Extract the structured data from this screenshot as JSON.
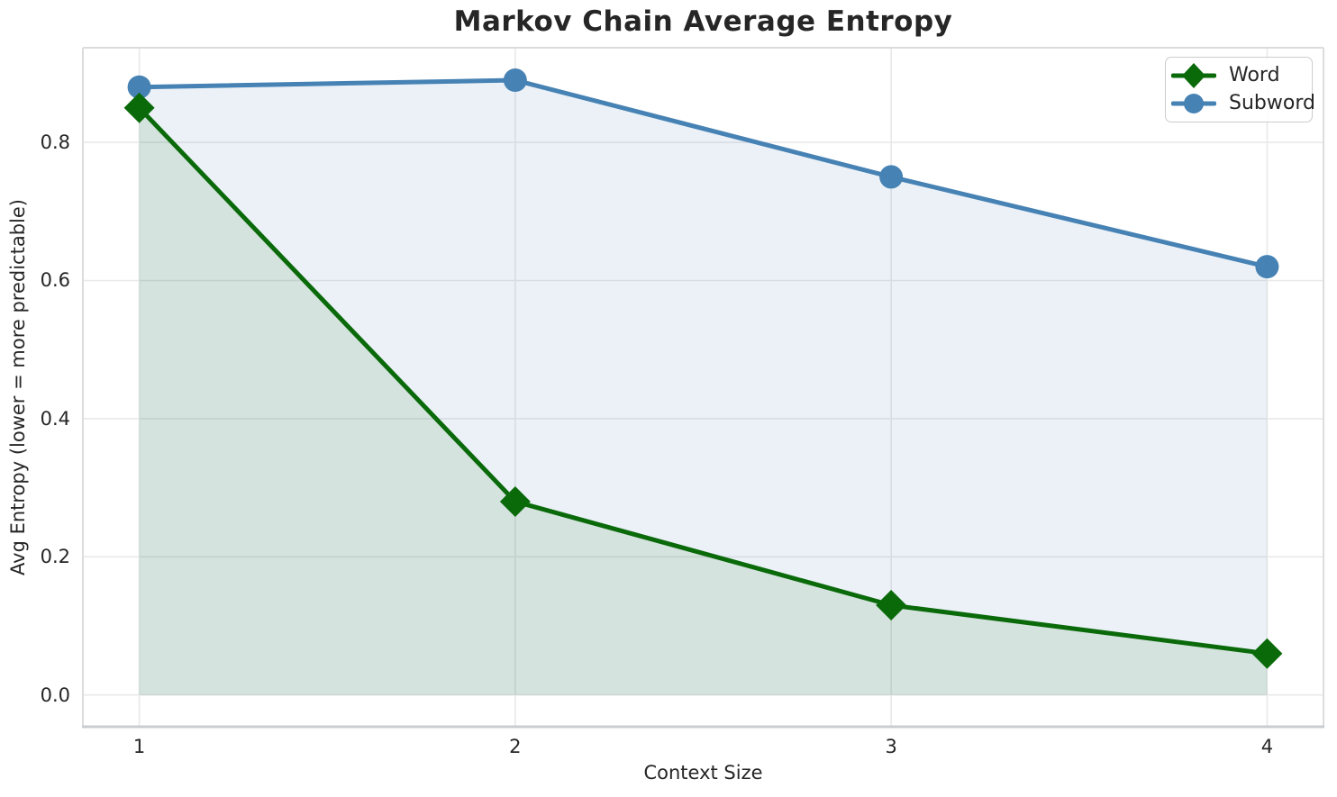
{
  "chart_data": {
    "type": "line",
    "title": "Markov Chain Average Entropy",
    "xlabel": "Context Size",
    "ylabel": "Avg Entropy (lower = more predictable)",
    "x": [
      1,
      2,
      3,
      4
    ],
    "series": [
      {
        "name": "Word",
        "color": "#0a6a0a",
        "marker": "diamond",
        "values": [
          0.85,
          0.28,
          0.13,
          0.06
        ],
        "fill": true,
        "fill_opacity": 0.1
      },
      {
        "name": "Subword",
        "color": "#4682b4",
        "marker": "circle",
        "values": [
          0.88,
          0.89,
          0.75,
          0.62
        ],
        "fill": true,
        "fill_opacity": 0.11
      }
    ],
    "fill_baseline": 0,
    "xticks": [
      "1",
      "2",
      "3",
      "4"
    ],
    "ytick_values": [
      0.0,
      0.2,
      0.4,
      0.6,
      0.8
    ],
    "yticks": [
      "0.0",
      "0.2",
      "0.4",
      "0.6",
      "0.8"
    ],
    "xlim": [
      0.85,
      4.15
    ],
    "ylim": [
      -0.046,
      0.937
    ],
    "grid": true,
    "legend_position": "upper right",
    "style": {
      "grid_color": "#e9e9e9",
      "spine_color": "#dcdcdc",
      "bottom_spine_color": "#c9cdcf",
      "text_color": "#262626",
      "background": "#ffffff"
    }
  }
}
